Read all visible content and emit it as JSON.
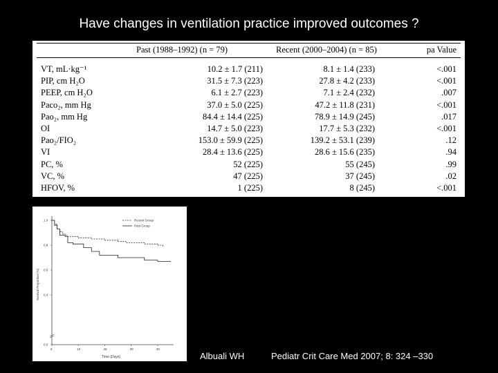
{
  "title": "Have changes in ventilation practice improved outcomes ?",
  "table": {
    "columns": [
      "",
      "Past (1988–1992) (n = 79)",
      "Recent (2000–2004) (n = 85)",
      "pa Value"
    ],
    "rows": [
      {
        "label": "VT, mL·kg⁻¹",
        "past": "10.2 ± 1.7 (211)",
        "recent": "8.1 ± 1.4 (233)",
        "p": "<.001"
      },
      {
        "label": "PIP, cm H₂O",
        "past": "31.5 ± 7.3 (223)",
        "recent": "27.8 ± 4.2 (233)",
        "p": "<.001"
      },
      {
        "label": "PEEP, cm H₂O",
        "past": "6.1 ± 2.7 (223)",
        "recent": "7.1 ± 2.4 (232)",
        "p": ".007"
      },
      {
        "label": "Paco₂, mm Hg",
        "past": "37.0 ± 5.0 (225)",
        "recent": "47.2 ± 11.8 (231)",
        "p": "<.001"
      },
      {
        "label": "Pao₂, mm Hg",
        "past": "84.4 ± 14.4 (225)",
        "recent": "78.9 ± 14.9 (245)",
        "p": ".017"
      },
      {
        "label": "OI",
        "past": "14.7 ± 5.0 (223)",
        "recent": "17.7 ± 5.3 (232)",
        "p": "<.001"
      },
      {
        "label": "Pao₂/FIO₂",
        "past": "153.0 ± 59.9 (225)",
        "recent": "139.2 ± 53.1 (239)",
        "p": ".12"
      },
      {
        "label": "VI",
        "past": "28.4 ± 13.6 (225)",
        "recent": "28.6 ± 15.6 (235)",
        "p": ".94"
      },
      {
        "label": "PC, %",
        "past": "52 (225)",
        "recent": "55 (245)",
        "p": ".99"
      },
      {
        "label": "VC, %",
        "past": "47 (225)",
        "recent": "37 (245)",
        "p": ".02"
      },
      {
        "label": "HFOV, %",
        "past": "1 (225)",
        "recent": "8 (245)",
        "p": "<.001"
      }
    ]
  },
  "chart_data": {
    "type": "line",
    "title": "",
    "xlabel": "Time (Days)",
    "ylabel": "Survival Proportion (%)",
    "xlim": [
      0,
      45
    ],
    "ylim": [
      0,
      1.0
    ],
    "xticks": [
      "0",
      "10",
      "20",
      "30",
      "40"
    ],
    "yticks": [
      "0.0",
      "0.4",
      "0.6",
      "0.8",
      "1.0"
    ],
    "series": [
      {
        "name": "Recent Group",
        "style": "dashed",
        "x": [
          0,
          1,
          2,
          3,
          4,
          5,
          6,
          8,
          10,
          15,
          20,
          25,
          28,
          35,
          40,
          42
        ],
        "y": [
          1.0,
          0.97,
          0.93,
          0.91,
          0.89,
          0.88,
          0.87,
          0.87,
          0.86,
          0.85,
          0.84,
          0.83,
          0.82,
          0.81,
          0.8,
          0.79
        ]
      },
      {
        "name": "Past Group",
        "style": "solid",
        "x": [
          0,
          1,
          2,
          3,
          5,
          6,
          8,
          12,
          15,
          18,
          25,
          35,
          40,
          45
        ],
        "y": [
          1.0,
          0.96,
          0.93,
          0.88,
          0.87,
          0.82,
          0.81,
          0.78,
          0.75,
          0.72,
          0.7,
          0.68,
          0.67,
          0.67
        ]
      }
    ]
  },
  "citation": {
    "author": "Albuali WH",
    "reference": "Pediatr Crit Care Med 2007; 8: 324 –330"
  }
}
